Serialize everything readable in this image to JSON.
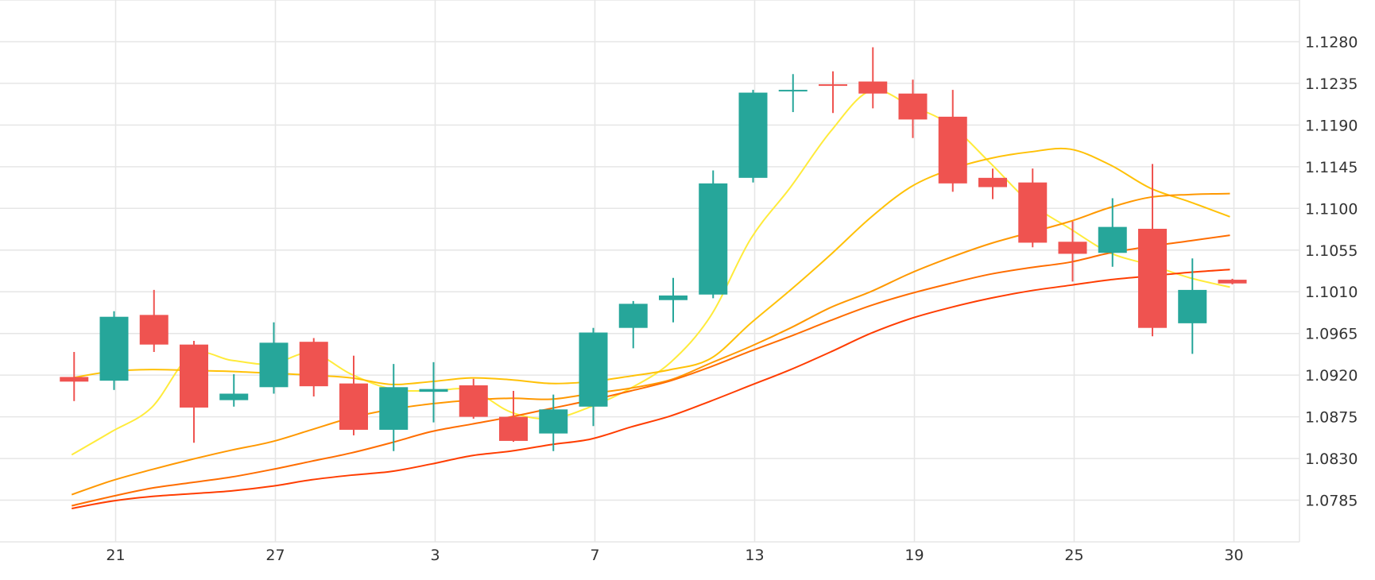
{
  "chart_data": {
    "type": "candlestick",
    "x_axis": {
      "tick_labels": [
        "21",
        "27",
        "3",
        "7",
        "13",
        "19",
        "25",
        "30"
      ],
      "tick_positions": [
        2,
        6,
        10,
        14,
        18,
        22,
        26,
        30
      ]
    },
    "y_axis": {
      "min": 1.074,
      "max": 1.1325,
      "ticks": [
        1.0785,
        1.083,
        1.0875,
        1.092,
        1.0965,
        1.101,
        1.1055,
        1.11,
        1.1145,
        1.119,
        1.1235,
        1.128
      ],
      "tick_labels": [
        "1.0785",
        "1.0830",
        "1.0875",
        "1.0920",
        "1.0965",
        "1.1010",
        "1.1055",
        "1.1100",
        "1.1145",
        "1.1190",
        "1.1235",
        "1.1280"
      ],
      "position": "right"
    },
    "grid": true,
    "colors": {
      "up": "#26a69a",
      "down": "#ef5350"
    },
    "candles": [
      {
        "x": 1,
        "open": 1.0918,
        "high": 1.0945,
        "low": 1.0892,
        "close": 1.0913
      },
      {
        "x": 2,
        "open": 1.0914,
        "high": 1.0989,
        "low": 1.0904,
        "close": 1.0983
      },
      {
        "x": 3,
        "open": 1.0985,
        "high": 1.1012,
        "low": 1.0945,
        "close": 1.0953
      },
      {
        "x": 4,
        "open": 1.0953,
        "high": 1.0957,
        "low": 1.0847,
        "close": 1.0885
      },
      {
        "x": 5,
        "open": 1.0893,
        "high": 1.0921,
        "low": 1.0886,
        "close": 1.09
      },
      {
        "x": 6,
        "open": 1.0907,
        "high": 1.0977,
        "low": 1.09,
        "close": 1.0955
      },
      {
        "x": 7,
        "open": 1.0956,
        "high": 1.096,
        "low": 1.0897,
        "close": 1.0908
      },
      {
        "x": 8,
        "open": 1.0911,
        "high": 1.0941,
        "low": 1.0855,
        "close": 1.0861
      },
      {
        "x": 9,
        "open": 1.0861,
        "high": 1.0932,
        "low": 1.0838,
        "close": 1.0907
      },
      {
        "x": 10,
        "open": 1.0902,
        "high": 1.0934,
        "low": 1.0869,
        "close": 1.0905
      },
      {
        "x": 11,
        "open": 1.0909,
        "high": 1.0916,
        "low": 1.0873,
        "close": 1.0875
      },
      {
        "x": 12,
        "open": 1.0875,
        "high": 1.0903,
        "low": 1.0848,
        "close": 1.0849
      },
      {
        "x": 13,
        "open": 1.0857,
        "high": 1.0899,
        "low": 1.0838,
        "close": 1.0883
      },
      {
        "x": 14,
        "open": 1.0886,
        "high": 1.0971,
        "low": 1.0865,
        "close": 1.0966
      },
      {
        "x": 15,
        "open": 1.0971,
        "high": 1.1,
        "low": 1.0949,
        "close": 1.0997
      },
      {
        "x": 16,
        "open": 1.1001,
        "high": 1.1025,
        "low": 1.0977,
        "close": 1.1006
      },
      {
        "x": 17,
        "open": 1.1007,
        "high": 1.1141,
        "low": 1.1003,
        "close": 1.1127
      },
      {
        "x": 18,
        "open": 1.1133,
        "high": 1.1228,
        "low": 1.1128,
        "close": 1.1225
      },
      {
        "x": 19,
        "open": 1.1227,
        "high": 1.1245,
        "low": 1.1204,
        "close": 1.1228
      },
      {
        "x": 20,
        "open": 1.1234,
        "high": 1.1248,
        "low": 1.1203,
        "close": 1.1233
      },
      {
        "x": 21,
        "open": 1.1237,
        "high": 1.1274,
        "low": 1.1208,
        "close": 1.1224
      },
      {
        "x": 22,
        "open": 1.1224,
        "high": 1.1239,
        "low": 1.1176,
        "close": 1.1196
      },
      {
        "x": 23,
        "open": 1.1199,
        "high": 1.1228,
        "low": 1.1118,
        "close": 1.1127
      },
      {
        "x": 24,
        "open": 1.1133,
        "high": 1.1143,
        "low": 1.111,
        "close": 1.1123
      },
      {
        "x": 25,
        "open": 1.1128,
        "high": 1.1143,
        "low": 1.1058,
        "close": 1.1063
      },
      {
        "x": 26,
        "open": 1.1064,
        "high": 1.1086,
        "low": 1.1021,
        "close": 1.1051
      },
      {
        "x": 27,
        "open": 1.1052,
        "high": 1.1111,
        "low": 1.1037,
        "close": 1.108
      },
      {
        "x": 28,
        "open": 1.1078,
        "high": 1.1148,
        "low": 1.0962,
        "close": 1.0971
      },
      {
        "x": 29,
        "open": 1.0976,
        "high": 1.1046,
        "low": 1.0943,
        "close": 1.1012
      },
      {
        "x": 30,
        "open": 1.1023,
        "high": 1.1024,
        "low": 1.1018,
        "close": 1.1019
      }
    ],
    "moving_averages": [
      {
        "color": "#ffeb3b",
        "points": [
          [
            0,
            1.0834
          ],
          [
            1,
            1.0859
          ],
          [
            2,
            1.0885
          ],
          [
            3,
            1.0942
          ],
          [
            4,
            1.0936
          ],
          [
            5,
            1.0932
          ],
          [
            6,
            1.0944
          ],
          [
            7,
            1.0921
          ],
          [
            8,
            1.0905
          ],
          [
            9,
            1.0903
          ],
          [
            10,
            1.0904
          ],
          [
            11,
            1.088
          ],
          [
            12,
            1.0873
          ],
          [
            13,
            1.0886
          ],
          [
            14,
            1.0906
          ],
          [
            15,
            1.0934
          ],
          [
            16,
            1.0984
          ],
          [
            17,
            1.1067
          ],
          [
            18,
            1.1123
          ],
          [
            19,
            1.1183
          ],
          [
            20,
            1.1227
          ],
          [
            21,
            1.1211
          ],
          [
            22,
            1.119
          ],
          [
            23,
            1.1149
          ],
          [
            24,
            1.1106
          ],
          [
            25,
            1.1078
          ],
          [
            26,
            1.1052
          ],
          [
            27,
            1.1039
          ],
          [
            28,
            1.1025
          ],
          [
            29,
            1.1015
          ]
        ]
      },
      {
        "color": "#ffc107",
        "points": [
          [
            0,
            1.0917
          ],
          [
            1,
            1.0924
          ],
          [
            2,
            1.0926
          ],
          [
            3,
            1.0925
          ],
          [
            4,
            1.0924
          ],
          [
            5,
            1.0922
          ],
          [
            6,
            1.092
          ],
          [
            7,
            1.0917
          ],
          [
            8,
            1.091
          ],
          [
            9,
            1.0913
          ],
          [
            10,
            1.0917
          ],
          [
            11,
            1.0915
          ],
          [
            12,
            1.0911
          ],
          [
            13,
            1.0913
          ],
          [
            14,
            1.0919
          ],
          [
            15,
            1.0926
          ],
          [
            16,
            1.0938
          ],
          [
            17,
            1.0976
          ],
          [
            18,
            1.1012
          ],
          [
            19,
            1.105
          ],
          [
            20,
            1.109
          ],
          [
            21,
            1.1123
          ],
          [
            22,
            1.1142
          ],
          [
            23,
            1.1154
          ],
          [
            24,
            1.1161
          ],
          [
            25,
            1.1164
          ],
          [
            26,
            1.1147
          ],
          [
            27,
            1.1122
          ],
          [
            28,
            1.1107
          ],
          [
            29,
            1.1091
          ]
        ]
      },
      {
        "color": "#ff9800",
        "points": [
          [
            0,
            1.0791
          ],
          [
            1,
            1.0806
          ],
          [
            2,
            1.0818
          ],
          [
            3,
            1.0829
          ],
          [
            4,
            1.0839
          ],
          [
            5,
            1.0848
          ],
          [
            6,
            1.0861
          ],
          [
            7,
            1.0874
          ],
          [
            8,
            1.0883
          ],
          [
            9,
            1.0889
          ],
          [
            10,
            1.0893
          ],
          [
            11,
            1.0895
          ],
          [
            12,
            1.0894
          ],
          [
            13,
            1.09
          ],
          [
            14,
            1.0906
          ],
          [
            15,
            1.0915
          ],
          [
            16,
            1.0933
          ],
          [
            17,
            1.0951
          ],
          [
            18,
            1.0971
          ],
          [
            19,
            1.0993
          ],
          [
            20,
            1.101
          ],
          [
            21,
            1.103
          ],
          [
            22,
            1.1047
          ],
          [
            23,
            1.1062
          ],
          [
            24,
            1.1074
          ],
          [
            25,
            1.1086
          ],
          [
            26,
            1.1101
          ],
          [
            27,
            1.1112
          ],
          [
            28,
            1.1115
          ],
          [
            29,
            1.1116
          ]
        ]
      },
      {
        "color": "#ff6d00",
        "points": [
          [
            0,
            1.0779
          ],
          [
            1,
            1.0789
          ],
          [
            2,
            1.0798
          ],
          [
            3,
            1.0804
          ],
          [
            4,
            1.081
          ],
          [
            5,
            1.0818
          ],
          [
            6,
            1.0827
          ],
          [
            7,
            1.0836
          ],
          [
            8,
            1.0847
          ],
          [
            9,
            1.0859
          ],
          [
            10,
            1.0867
          ],
          [
            11,
            1.0875
          ],
          [
            12,
            1.0884
          ],
          [
            13,
            1.0893
          ],
          [
            14,
            1.0903
          ],
          [
            15,
            1.0914
          ],
          [
            16,
            1.0929
          ],
          [
            17,
            1.0946
          ],
          [
            18,
            1.0962
          ],
          [
            19,
            1.0979
          ],
          [
            20,
            1.0995
          ],
          [
            21,
            1.1008
          ],
          [
            22,
            1.1019
          ],
          [
            23,
            1.1029
          ],
          [
            24,
            1.1036
          ],
          [
            25,
            1.1042
          ],
          [
            26,
            1.1052
          ],
          [
            27,
            1.1059
          ],
          [
            28,
            1.1065
          ],
          [
            29,
            1.1071
          ]
        ]
      },
      {
        "color": "#ff3d00",
        "points": [
          [
            0,
            1.0776
          ],
          [
            1,
            1.0784
          ],
          [
            2,
            1.0789
          ],
          [
            3,
            1.0792
          ],
          [
            4,
            1.0795
          ],
          [
            5,
            1.08
          ],
          [
            6,
            1.0807
          ],
          [
            7,
            1.0812
          ],
          [
            8,
            1.0816
          ],
          [
            9,
            1.0824
          ],
          [
            10,
            1.0833
          ],
          [
            11,
            1.0838
          ],
          [
            12,
            1.0845
          ],
          [
            13,
            1.0851
          ],
          [
            14,
            1.0864
          ],
          [
            15,
            1.0876
          ],
          [
            16,
            1.0892
          ],
          [
            17,
            1.0909
          ],
          [
            18,
            1.0926
          ],
          [
            19,
            1.0945
          ],
          [
            20,
            1.0965
          ],
          [
            21,
            1.0981
          ],
          [
            22,
            1.0993
          ],
          [
            23,
            1.1003
          ],
          [
            24,
            1.1011
          ],
          [
            25,
            1.1017
          ],
          [
            26,
            1.1023
          ],
          [
            27,
            1.1027
          ],
          [
            28,
            1.1031
          ],
          [
            29,
            1.1034
          ]
        ]
      }
    ]
  }
}
